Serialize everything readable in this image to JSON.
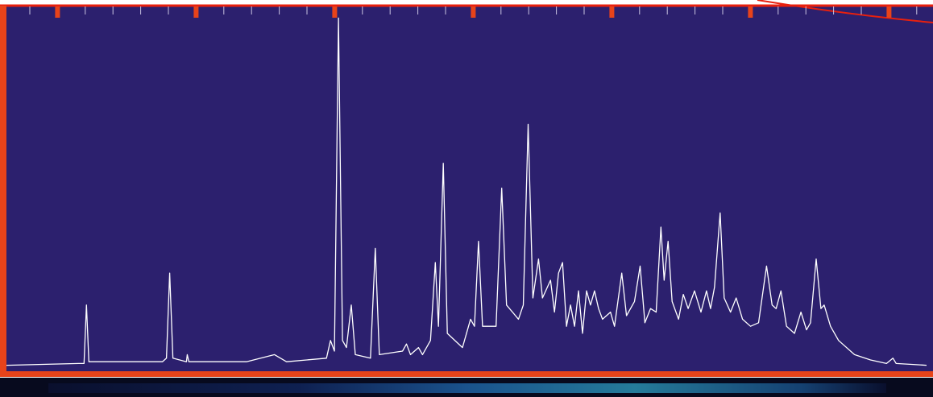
{
  "chart_data": {
    "type": "line",
    "color": "#ffffff",
    "xlim": [
      0,
      1150
    ],
    "ylim": [
      0,
      100
    ],
    "x": [
      0,
      90,
      97,
      100,
      103,
      195,
      200,
      204,
      208,
      225,
      226,
      228,
      300,
      335,
      350,
      400,
      405,
      410,
      415,
      420,
      425,
      431,
      436,
      455,
      461,
      466,
      495,
      500,
      505,
      515,
      520,
      530,
      536,
      540,
      546,
      551,
      570,
      580,
      585,
      590,
      595,
      605,
      612,
      619,
      625,
      640,
      646,
      652,
      658,
      665,
      670,
      680,
      685,
      690,
      695,
      700,
      705,
      710,
      715,
      720,
      725,
      730,
      735,
      740,
      745,
      755,
      760,
      769,
      775,
      785,
      792,
      798,
      805,
      812,
      818,
      822,
      827,
      832,
      840,
      846,
      852,
      860,
      868,
      875,
      880,
      885,
      892,
      897,
      905,
      912,
      920,
      930,
      940,
      950,
      957,
      962,
      968,
      975,
      985,
      993,
      1000,
      1005,
      1012,
      1018,
      1022,
      1030,
      1040,
      1060,
      1080,
      1100,
      1108,
      1112,
      1150
    ],
    "values": [
      1,
      1.5,
      1.5,
      18,
      2,
      2,
      3,
      27,
      3,
      2,
      4,
      2,
      2,
      4,
      2,
      3,
      8,
      5,
      99,
      8,
      6,
      18,
      4,
      3,
      34,
      4,
      5,
      7,
      4,
      6,
      4,
      8,
      30,
      12,
      58,
      10,
      6,
      14,
      12,
      36,
      12,
      12,
      12,
      51,
      18,
      14,
      18,
      69,
      20,
      31,
      20,
      25,
      16,
      27,
      30,
      12,
      18,
      12,
      22,
      10,
      22,
      18,
      22,
      17,
      14,
      16,
      12,
      27,
      15,
      19,
      29,
      13,
      17,
      16,
      40,
      25,
      36,
      19,
      14,
      21,
      17,
      22,
      16,
      22,
      17,
      23,
      44,
      20,
      16,
      20,
      14,
      12,
      13,
      29,
      18,
      17,
      22,
      12,
      10,
      16,
      11,
      13,
      31,
      17,
      18,
      12,
      8,
      4,
      2.5,
      1.5,
      3,
      1.5,
      1
    ]
  }
}
